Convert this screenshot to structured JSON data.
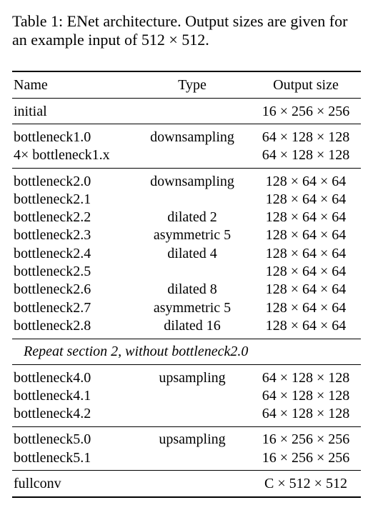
{
  "caption": "Table 1: ENet architecture. Output sizes are given for an example input of 512 × 512.",
  "table": {
    "columns": [
      "Name",
      "Type",
      "Output size"
    ],
    "groups": [
      {
        "rows": [
          {
            "name": "initial",
            "output": "16 × 256 × 256"
          }
        ]
      },
      {
        "rows": [
          {
            "name": "bottleneck1.0",
            "type": "downsampling",
            "output": "64 × 128 × 128"
          },
          {
            "name": "4× bottleneck1.x",
            "output": "64 × 128 × 128"
          }
        ]
      },
      {
        "rows": [
          {
            "name": "bottleneck2.0",
            "type": "downsampling",
            "output": "128 × 64 × 64"
          },
          {
            "name": "bottleneck2.1",
            "output": "128 × 64 × 64"
          },
          {
            "name": "bottleneck2.2",
            "type": "dilated 2",
            "output": "128 × 64 × 64"
          },
          {
            "name": "bottleneck2.3",
            "type": "asymmetric 5",
            "output": "128 × 64 × 64"
          },
          {
            "name": "bottleneck2.4",
            "type": "dilated 4",
            "output": "128 × 64 × 64"
          },
          {
            "name": "bottleneck2.5",
            "output": "128 × 64 × 64"
          },
          {
            "name": "bottleneck2.6",
            "type": "dilated 8",
            "output": "128 × 64 × 64"
          },
          {
            "name": "bottleneck2.7",
            "type": "asymmetric 5",
            "output": "128 × 64 × 64"
          },
          {
            "name": "bottleneck2.8",
            "type": "dilated 16",
            "output": "128 × 64 × 64"
          }
        ]
      },
      {
        "note": "Repeat section 2, without bottleneck2.0"
      },
      {
        "rows": [
          {
            "name": "bottleneck4.0",
            "type": "upsampling",
            "output": "64 × 128 × 128"
          },
          {
            "name": "bottleneck4.1",
            "output": "64 × 128 × 128"
          },
          {
            "name": "bottleneck4.2",
            "output": "64 × 128 × 128"
          }
        ]
      },
      {
        "rows": [
          {
            "name": "bottleneck5.0",
            "type": "upsampling",
            "output": "16 × 256 × 256"
          },
          {
            "name": "bottleneck5.1",
            "output": "16 × 256 × 256"
          }
        ]
      },
      {
        "rows": [
          {
            "name": "fullconv",
            "output": "C × 512 × 512"
          }
        ]
      }
    ]
  }
}
